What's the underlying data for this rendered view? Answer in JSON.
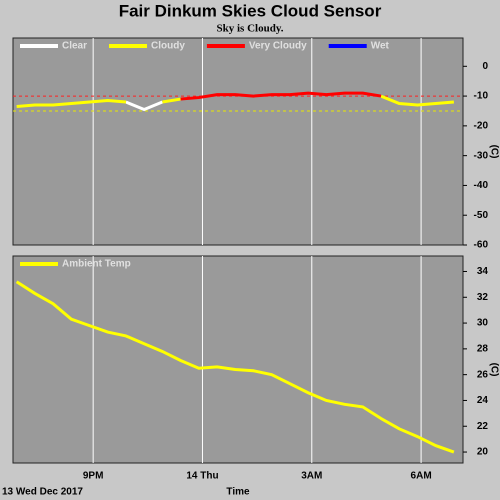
{
  "chart_data": [
    {
      "type": "line",
      "title": "Fair Dinkum Skies Cloud Sensor",
      "subtitle": "Sky is Cloudy.",
      "ylabel": "(C)",
      "x": [
        18.9,
        19.4,
        19.9,
        20.4,
        20.9,
        21.4,
        21.9,
        22.4,
        22.9,
        23.4,
        23.9,
        24.4,
        24.9,
        25.4,
        25.9,
        26.4,
        26.9,
        27.4,
        27.9,
        28.4,
        28.9,
        29.4,
        29.9,
        30.4,
        30.9
      ],
      "xlim": [
        18.8,
        31.15
      ],
      "xgrid": [
        21,
        24,
        27,
        30
      ],
      "ylim": [
        -60,
        9.5
      ],
      "yticks": [
        0,
        -10,
        -20,
        -30,
        -40,
        -50,
        -60
      ],
      "threshold_lines": [
        {
          "value": -10,
          "color": "#ff2020"
        },
        {
          "value": -15,
          "color": "#e8e800"
        }
      ],
      "series": [
        {
          "name": "Clear",
          "color": "#ffffff",
          "values": [
            null,
            null,
            null,
            null,
            null,
            null,
            -12,
            -14.5,
            -12,
            null,
            null,
            null,
            null,
            null,
            null,
            null,
            null,
            null,
            null,
            null,
            null,
            null,
            null,
            null,
            null
          ]
        },
        {
          "name": "Cloudy",
          "color": "#ffff00",
          "values": [
            -13.5,
            -13,
            -13,
            -12.5,
            -12,
            -11.5,
            -12,
            null,
            -12,
            -11,
            null,
            null,
            null,
            null,
            null,
            null,
            null,
            null,
            null,
            null,
            -10,
            -12.5,
            -13,
            -12.5,
            -12
          ]
        },
        {
          "name": "Very Cloudy",
          "color": "#ff0000",
          "values": [
            null,
            null,
            null,
            null,
            null,
            null,
            null,
            null,
            null,
            -11,
            -10.5,
            -9.5,
            -9.5,
            -10,
            -9.5,
            -9.5,
            -9,
            -9.5,
            -9,
            -9,
            -10,
            null,
            null,
            null,
            null
          ]
        },
        {
          "name": "Wet",
          "color": "#0000ff",
          "values": [
            null,
            null,
            null,
            null,
            null,
            null,
            null,
            null,
            null,
            null,
            null,
            null,
            null,
            null,
            null,
            null,
            null,
            null,
            null,
            null,
            null,
            null,
            null,
            null,
            null
          ]
        }
      ]
    },
    {
      "type": "line",
      "ylabel": "(C)",
      "xlabel": "Time",
      "start_label": "13 Wed Dec 2017",
      "x": [
        18.9,
        19.4,
        19.9,
        20.4,
        20.9,
        21.4,
        21.9,
        22.4,
        22.9,
        23.4,
        23.9,
        24.4,
        24.9,
        25.4,
        25.9,
        26.4,
        26.9,
        27.4,
        27.9,
        28.4,
        28.9,
        29.4,
        29.9,
        30.4,
        30.9
      ],
      "xlim": [
        18.8,
        31.15
      ],
      "xticks": [
        {
          "value": 21,
          "label": "9PM"
        },
        {
          "value": 24,
          "label": "14 Thu"
        },
        {
          "value": 27,
          "label": "3AM"
        },
        {
          "value": 30,
          "label": "6AM"
        }
      ],
      "ylim": [
        19.15,
        35.2
      ],
      "yticks": [
        34,
        32,
        30,
        28,
        26,
        24,
        22,
        20
      ],
      "series": [
        {
          "name": "Ambient Temp",
          "color": "#ffff00",
          "values": [
            33.2,
            32.3,
            31.5,
            30.3,
            29.8,
            29.3,
            29.0,
            28.4,
            27.8,
            27.1,
            26.5,
            26.6,
            26.4,
            26.3,
            26.0,
            25.3,
            24.6,
            24.0,
            23.7,
            23.5,
            22.6,
            21.8,
            21.2,
            20.5,
            20.0
          ]
        }
      ]
    }
  ]
}
